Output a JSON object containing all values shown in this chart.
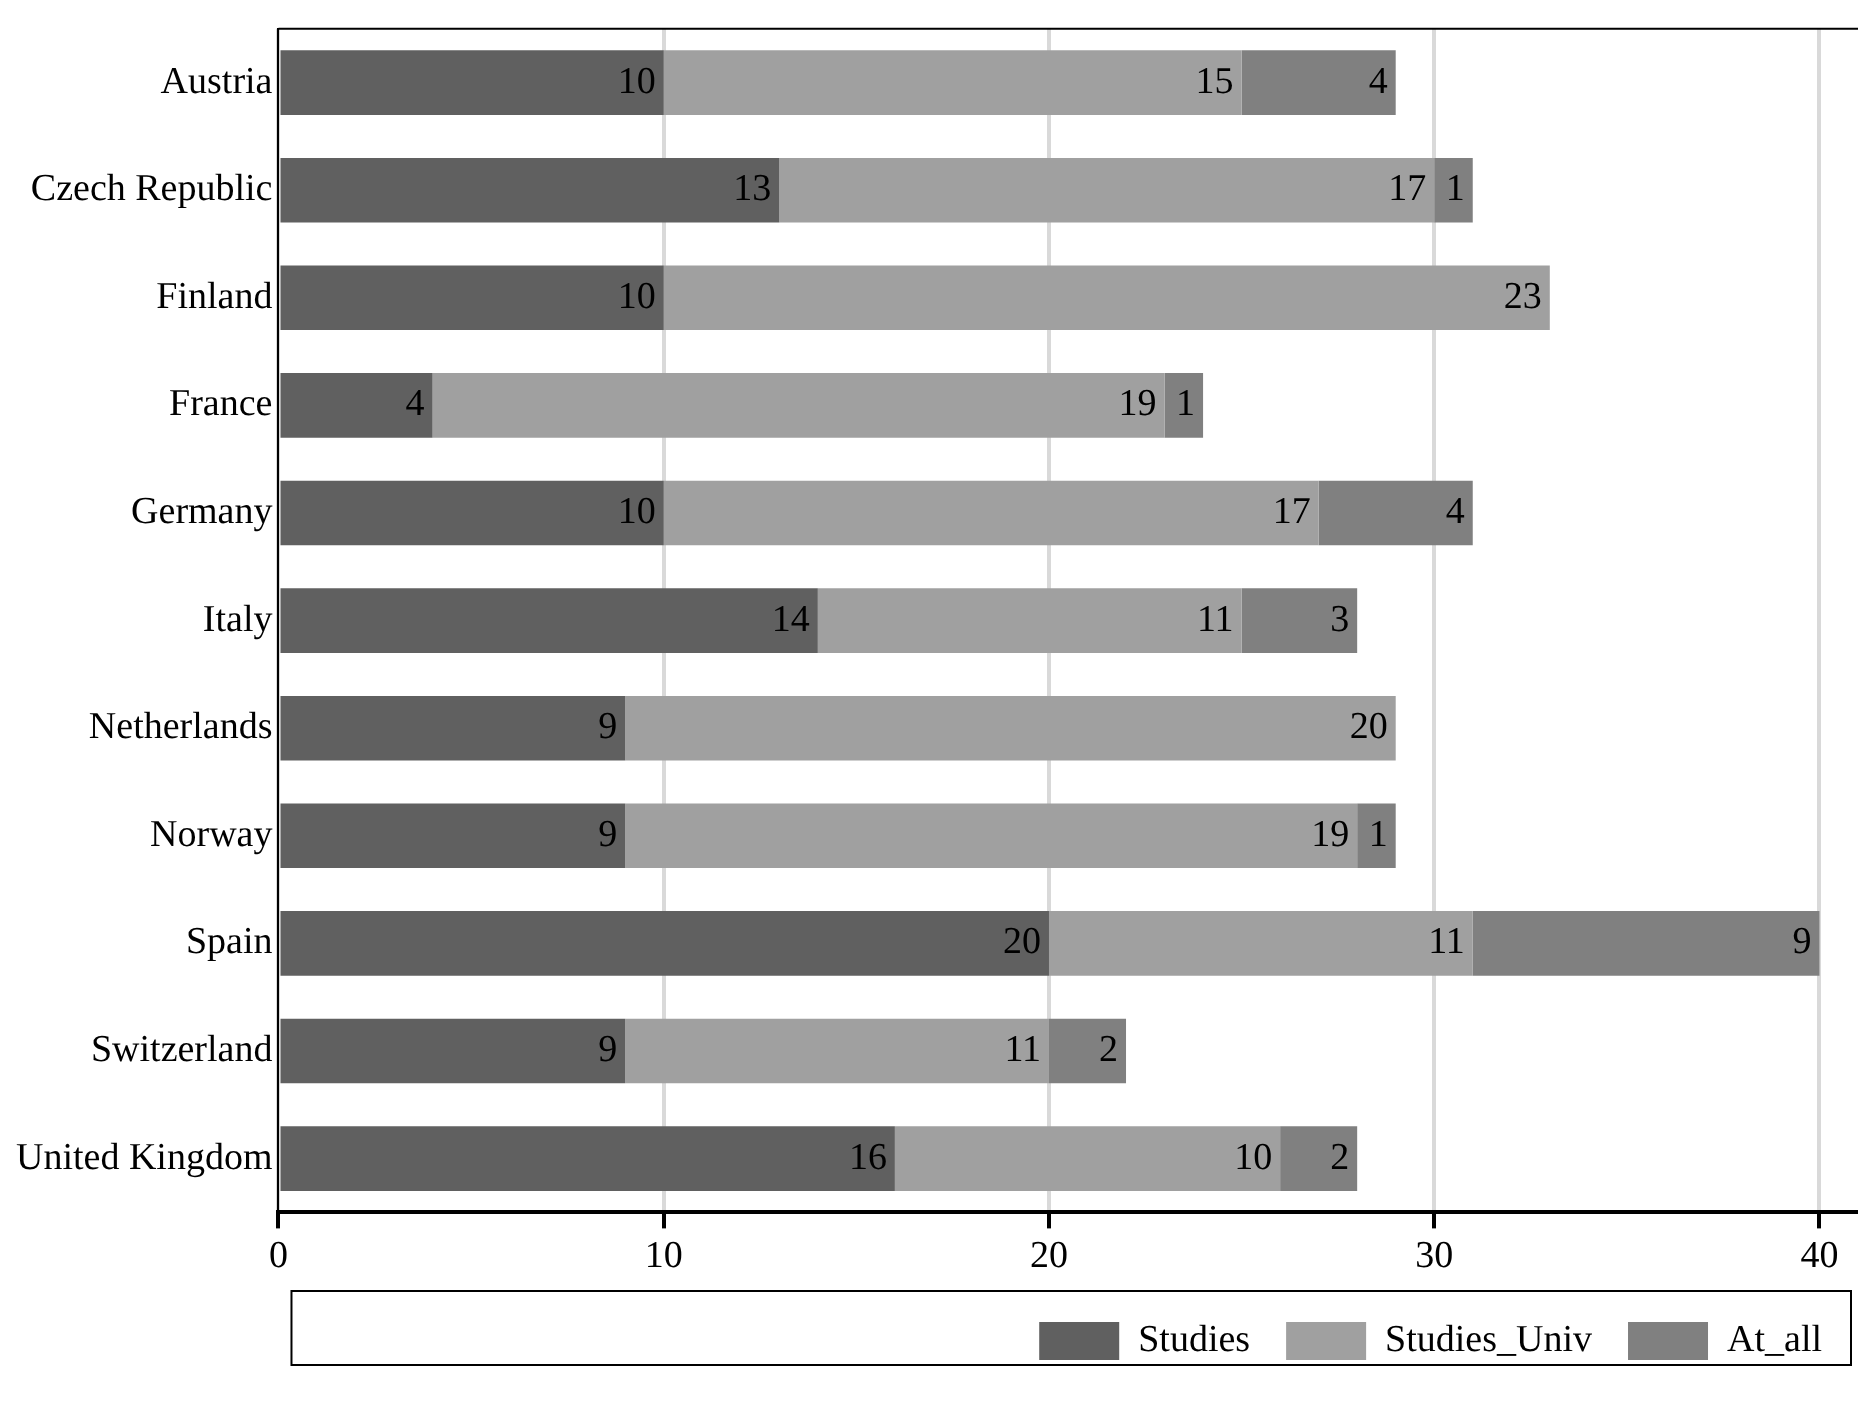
{
  "chart_data": {
    "type": "bar",
    "orientation": "horizontal",
    "stacked": true,
    "grid": "x",
    "legend": "bottom",
    "categories": [
      "Austria",
      "Czech Republic",
      "Finland",
      "France",
      "Germany",
      "Italy",
      "Netherlands",
      "Norway",
      "Spain",
      "Switzerland",
      "United Kingdom"
    ],
    "series": [
      {
        "name": "Studies",
        "color": "#606060",
        "values": [
          10,
          13,
          10,
          4,
          10,
          14,
          9,
          9,
          20,
          9,
          16
        ],
        "value_labels": [
          "10",
          "13",
          "10",
          "4",
          "10",
          "14",
          "9",
          "9",
          "20",
          "9",
          "16"
        ]
      },
      {
        "name": "Studies_Univ",
        "color": "#a0a0a0",
        "values": [
          15,
          17,
          23,
          19,
          17,
          11,
          20,
          19,
          11,
          11,
          10
        ],
        "value_labels": [
          "15",
          "17",
          "23",
          "19",
          "17",
          "11",
          "20",
          "19",
          "11",
          "11",
          "10"
        ]
      },
      {
        "name": "At_all",
        "color": "#808080",
        "values": [
          4,
          1,
          0,
          1,
          4,
          3,
          0,
          1,
          9,
          2,
          2
        ],
        "value_labels": [
          "4",
          "1",
          null,
          "1",
          "4",
          "3",
          null,
          "1",
          "9",
          "2",
          "2"
        ]
      }
    ],
    "xlim": [
      0,
      41
    ],
    "xticks": [
      0,
      10,
      20,
      30,
      40
    ]
  }
}
